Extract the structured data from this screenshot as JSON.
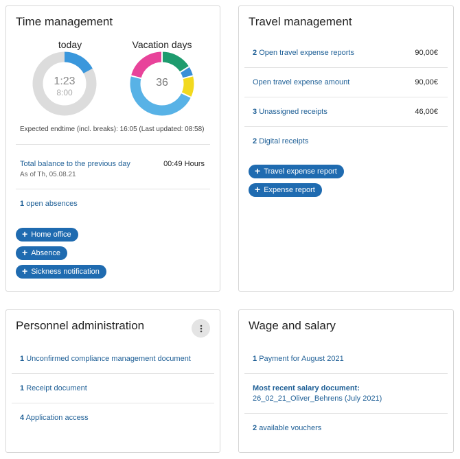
{
  "time": {
    "title": "Time management",
    "today_label": "today",
    "today_time": "1:23",
    "today_target": "8:00",
    "today_fraction": 0.17,
    "vacation_label": "Vacation days",
    "vacation_value": "36",
    "vacation_segments": [
      {
        "color": "#1e9b6e",
        "fraction": 0.16
      },
      {
        "color": "#3a8fd6",
        "fraction": 0.05
      },
      {
        "color": "#f2d91e",
        "fraction": 0.11
      },
      {
        "color": "#58b2e6",
        "fraction": 0.47
      },
      {
        "color": "#e8439a",
        "fraction": 0.21
      }
    ],
    "expected_endtime": "Expected endtime (incl. breaks): 16:05 (Last updated: 08:58)",
    "balance_label": "Total balance to the previous day",
    "balance_asof": "As of Th, 05.08.21",
    "balance_value": "00:49 Hours",
    "absences_count": "1",
    "absences_label": "open absences",
    "btn_home_office": "Home office",
    "btn_absence": "Absence",
    "btn_sickness": "Sickness notification"
  },
  "travel": {
    "title": "Travel management",
    "rows": [
      {
        "count": "2",
        "label": "Open travel expense reports",
        "value": "90,00€"
      },
      {
        "count": "",
        "label": "Open travel expense amount",
        "value": "90,00€"
      },
      {
        "count": "3",
        "label": "Unassigned receipts",
        "value": "46,00€"
      },
      {
        "count": "2",
        "label": "Digital receipts",
        "value": ""
      }
    ],
    "btn_travel_report": "Travel expense report",
    "btn_expense_report": "Expense report"
  },
  "personnel": {
    "title": "Personnel administration",
    "kebab_icon": "more-vertical-icon",
    "rows": [
      {
        "count": "1",
        "label": "Unconfirmed compliance management document"
      },
      {
        "count": "1",
        "label": "Receipt document"
      },
      {
        "count": "4",
        "label": "Application access"
      }
    ]
  },
  "wage": {
    "title": "Wage and salary",
    "payment_count": "1",
    "payment_label": "Payment for August 2021",
    "recent_label": "Most recent salary document:",
    "recent_doc": "26_02_21_Oliver_Behrens (July 2021)",
    "vouchers_count": "2",
    "vouchers_label": "available vouchers"
  }
}
